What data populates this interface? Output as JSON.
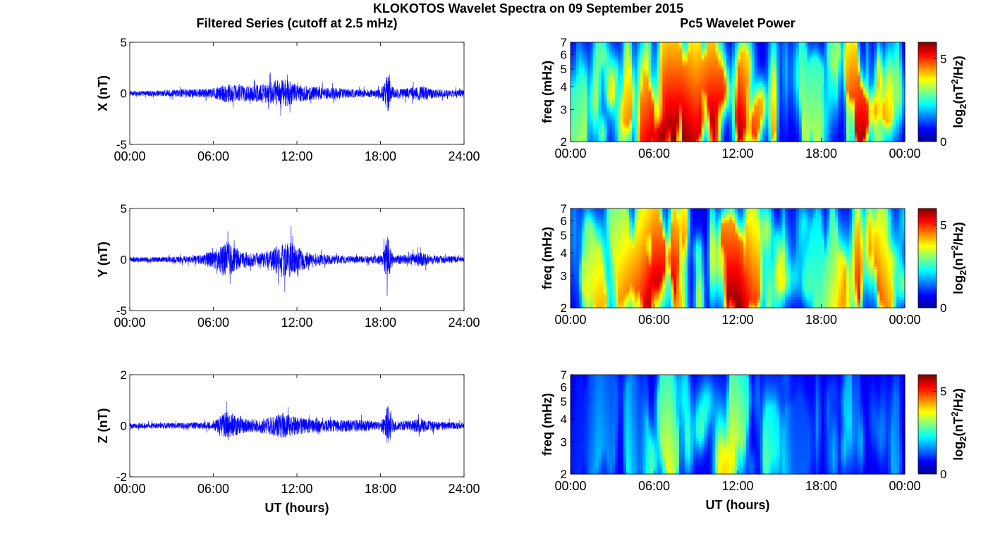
{
  "figure": {
    "title": "KLOKOTOS Wavelet Spectra on 09 September 2015",
    "left_column_title": "Filtered Series (cutoff at 2.5 mHz)",
    "right_column_title": "Pc5 Wavelet Power",
    "xlabel": "UT (hours)"
  },
  "colors": {
    "series_line": "#0000ff",
    "colormap": "jet",
    "axes": "#000000"
  },
  "chart_data": [
    {
      "type": "line",
      "panel": "X",
      "ylabel": "X (nT)",
      "xlim_hours": [
        0,
        24
      ],
      "ylim": [
        -5,
        5
      ],
      "xticks": [
        "00:00",
        "06:00",
        "12:00",
        "18:00",
        "24:00"
      ],
      "yticks": [
        "5",
        "0",
        "-5"
      ],
      "envelope": {
        "hours": [
          0,
          1,
          2,
          3,
          4,
          5,
          6,
          6.5,
          7,
          7.5,
          8,
          9,
          10,
          10.5,
          11,
          11.5,
          12,
          13,
          14,
          15,
          16,
          17,
          18,
          18.3,
          18.5,
          18.8,
          19,
          20,
          20.5,
          21,
          21.5,
          22,
          23,
          24
        ],
        "amplitude_nT": [
          0.3,
          0.3,
          0.35,
          0.4,
          0.45,
          0.5,
          0.6,
          0.9,
          1.1,
          1.0,
          0.9,
          1.0,
          1.2,
          1.6,
          1.7,
          1.4,
          1.0,
          0.8,
          0.7,
          0.6,
          0.5,
          0.45,
          0.5,
          1.2,
          2.4,
          1.0,
          0.5,
          0.6,
          0.8,
          0.9,
          0.7,
          0.5,
          0.4,
          0.4
        ]
      }
    },
    {
      "type": "line",
      "panel": "Y",
      "ylabel": "Y (nT)",
      "xlim_hours": [
        0,
        24
      ],
      "ylim": [
        -5,
        5
      ],
      "xticks": [
        "00:00",
        "06:00",
        "12:00",
        "18:00",
        "24:00"
      ],
      "yticks": [
        "5",
        "0",
        "-5"
      ],
      "envelope": {
        "hours": [
          0,
          1,
          2,
          3,
          4,
          5,
          5.5,
          6,
          6.5,
          7,
          7.5,
          8,
          9,
          10,
          10.5,
          11,
          11.5,
          12,
          13,
          14,
          15,
          16,
          17,
          18,
          18.3,
          18.5,
          18.8,
          19,
          20,
          20.5,
          21,
          21.5,
          22,
          23,
          24
        ],
        "amplitude_nT": [
          0.3,
          0.3,
          0.3,
          0.35,
          0.4,
          0.5,
          0.8,
          1.0,
          1.6,
          2.2,
          1.4,
          0.9,
          0.8,
          1.0,
          1.6,
          1.9,
          2.2,
          1.5,
          0.8,
          0.6,
          0.5,
          0.4,
          0.4,
          0.5,
          1.5,
          2.8,
          1.0,
          0.5,
          0.6,
          0.8,
          0.8,
          0.6,
          0.5,
          0.4,
          0.3
        ]
      }
    },
    {
      "type": "line",
      "panel": "Z",
      "ylabel": "Z (nT)",
      "xlim_hours": [
        0,
        24
      ],
      "ylim": [
        -2,
        2
      ],
      "xticks": [
        "00:00",
        "06:00",
        "12:00",
        "18:00",
        "24:00"
      ],
      "yticks": [
        "2",
        "0",
        "-2"
      ],
      "envelope": {
        "hours": [
          0,
          1,
          2,
          3,
          4,
          5,
          6,
          6.5,
          7,
          7.5,
          8,
          9,
          10,
          10.5,
          11,
          11.5,
          12,
          13,
          14,
          15,
          16,
          17,
          18,
          18.3,
          18.5,
          18.8,
          19,
          20,
          20.5,
          21,
          22,
          23,
          24
        ],
        "amplitude_nT": [
          0.12,
          0.12,
          0.13,
          0.14,
          0.15,
          0.16,
          0.2,
          0.4,
          0.7,
          0.5,
          0.35,
          0.3,
          0.4,
          0.5,
          0.6,
          0.5,
          0.4,
          0.35,
          0.3,
          0.28,
          0.3,
          0.25,
          0.2,
          0.5,
          1.0,
          0.4,
          0.2,
          0.25,
          0.3,
          0.3,
          0.2,
          0.18,
          0.15
        ]
      }
    },
    {
      "type": "heatmap",
      "panel": "X",
      "ylabel": "freq (mHz)",
      "xlim_hours": [
        0,
        24
      ],
      "ylim_mHz": [
        2,
        7
      ],
      "yscale": "log",
      "yticks": [
        "2",
        "3",
        "4",
        "5",
        "6",
        "7"
      ],
      "xticks": [
        "00:00",
        "06:00",
        "12:00",
        "18:00",
        "00:00"
      ],
      "colorbar": {
        "label": "log2(nT^2/Hz)",
        "range": [
          0,
          6
        ],
        "ticks": [
          "0",
          "5"
        ]
      },
      "power_envelope_log2": {
        "hours": [
          0,
          1,
          2,
          3,
          4,
          5,
          6,
          7,
          8,
          9,
          10,
          11,
          12,
          13,
          14,
          15,
          16,
          17,
          18,
          19,
          20,
          21,
          22,
          23,
          24
        ],
        "max_power": [
          2.5,
          3.0,
          3.5,
          4.0,
          4.5,
          5.0,
          5.5,
          6.0,
          6.0,
          5.5,
          6.0,
          6.0,
          6.0,
          5.0,
          4.5,
          4.0,
          3.5,
          3.0,
          3.0,
          4.0,
          5.5,
          5.8,
          5.0,
          4.0,
          3.0
        ]
      }
    },
    {
      "type": "heatmap",
      "panel": "Y",
      "ylabel": "freq (mHz)",
      "xlim_hours": [
        0,
        24
      ],
      "ylim_mHz": [
        2,
        7
      ],
      "yscale": "log",
      "yticks": [
        "2",
        "3",
        "4",
        "5",
        "6",
        "7"
      ],
      "xticks": [
        "00:00",
        "06:00",
        "12:00",
        "18:00",
        "00:00"
      ],
      "colorbar": {
        "label": "log2(nT^2/Hz)",
        "range": [
          0,
          6
        ],
        "ticks": [
          "0",
          "5"
        ]
      },
      "power_envelope_log2": {
        "hours": [
          0,
          1,
          2,
          3,
          4,
          5,
          6,
          7,
          8,
          9,
          10,
          11,
          12,
          13,
          14,
          15,
          16,
          17,
          18,
          19,
          20,
          21,
          22,
          23,
          24
        ],
        "max_power": [
          3.0,
          3.5,
          4.0,
          4.0,
          4.5,
          5.0,
          6.0,
          6.0,
          5.5,
          5.0,
          6.0,
          6.0,
          6.0,
          5.0,
          4.5,
          4.0,
          3.0,
          2.5,
          2.5,
          3.5,
          5.0,
          5.5,
          5.0,
          4.0,
          3.0
        ]
      }
    },
    {
      "type": "heatmap",
      "panel": "Z",
      "ylabel": "freq (mHz)",
      "xlim_hours": [
        0,
        24
      ],
      "ylim_mHz": [
        2,
        7
      ],
      "yscale": "log",
      "yticks": [
        "2",
        "3",
        "4",
        "5",
        "6",
        "7"
      ],
      "xticks": [
        "00:00",
        "06:00",
        "12:00",
        "18:00",
        "00:00"
      ],
      "colorbar": {
        "label": "log2(nT^2/Hz)",
        "range": [
          0,
          6
        ],
        "ticks": [
          "0",
          "5"
        ]
      },
      "power_envelope_log2": {
        "hours": [
          0,
          1,
          2,
          3,
          4,
          5,
          6,
          7,
          8,
          9,
          10,
          11,
          12,
          13,
          14,
          15,
          16,
          17,
          18,
          19,
          20,
          21,
          22,
          23,
          24
        ],
        "max_power": [
          0.3,
          0.5,
          1.5,
          1.0,
          2.0,
          0.8,
          3.0,
          3.5,
          2.5,
          2.5,
          3.0,
          3.8,
          3.5,
          2.5,
          2.5,
          2.0,
          0.8,
          0.8,
          1.5,
          1.8,
          2.0,
          2.2,
          1.0,
          1.5,
          0.8
        ]
      }
    }
  ]
}
